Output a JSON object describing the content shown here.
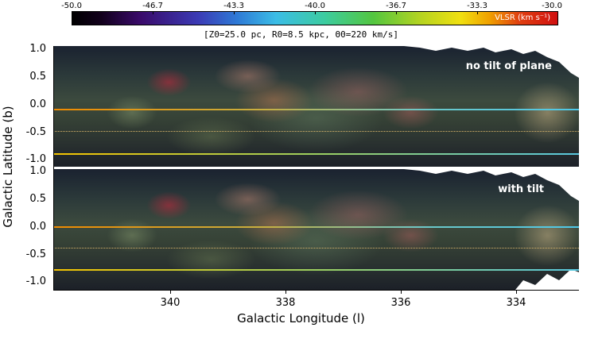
{
  "colorbar": {
    "ticks": [
      "-50.0",
      "-46.7",
      "-43.3",
      "-40.0",
      "-36.7",
      "-33.3",
      "-30.0"
    ],
    "label": "V_LSR (km s^-1)",
    "label_display": "VLSR (km s⁻¹)"
  },
  "params": "[Z0=25.0 pc, R0=8.5 kpc, Θ0=220 km/s]",
  "panels": [
    {
      "label": "no tilt of plane"
    },
    {
      "label": "with tilt"
    }
  ],
  "axes": {
    "ylabel": "Galactic Latitude (b)",
    "xlabel": "Galactic Longitude (l)",
    "yticks": [
      "1.0",
      "0.5",
      "0.0",
      "-0.5",
      "-1.0"
    ],
    "xticks": [
      "340",
      "338",
      "336",
      "334"
    ]
  },
  "colors": {
    "line_gradient_start": "#f08a00",
    "line_gradient_end": "#4ec8e8",
    "line_lower_start": "#f5c400",
    "line_lower_end": "#58c8e0"
  }
}
